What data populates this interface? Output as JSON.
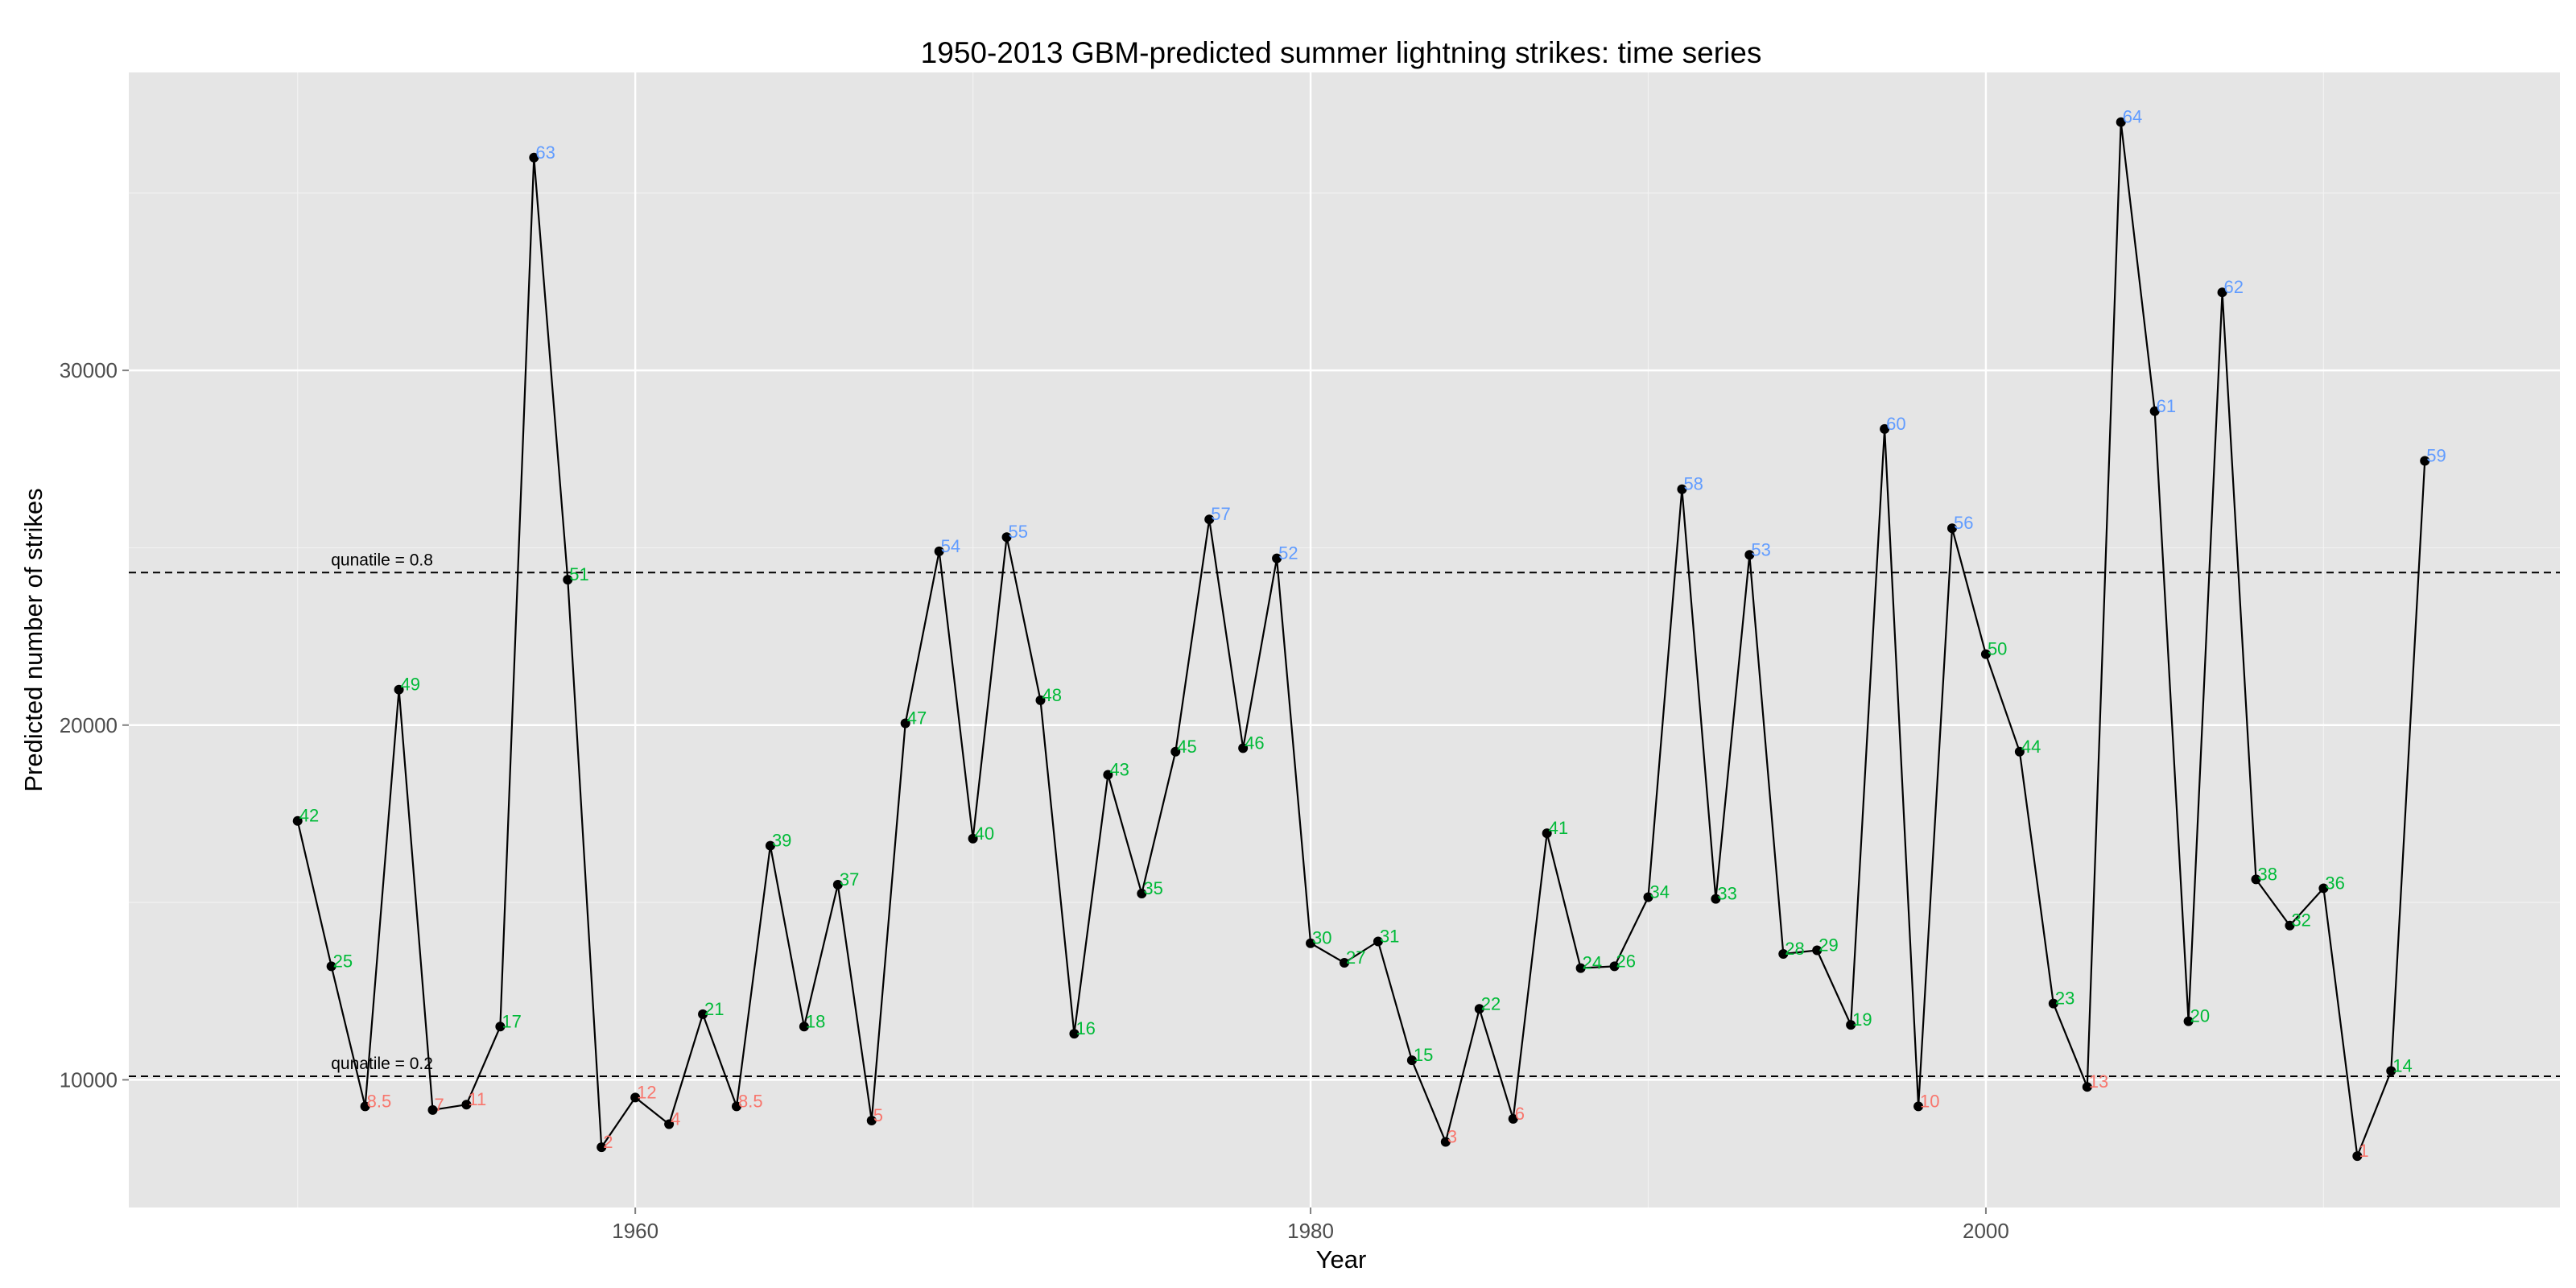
{
  "chart_data": {
    "type": "line",
    "title": "1950-2013 GBM-predicted summer lightning strikes: time series",
    "xlabel": "Year",
    "ylabel": "Predicted number of strikes",
    "xlim": [
      1945,
      2017
    ],
    "ylim": [
      6400,
      38400
    ],
    "x_ticks": [
      1960,
      1980,
      2000
    ],
    "y_ticks": [
      10000,
      20000,
      30000
    ],
    "grid": true,
    "background": "#e5e5e5",
    "colors": {
      "low": "#f8766d",
      "mid": "#00ba38",
      "high": "#619cff",
      "line": "#000000"
    },
    "reference_lines": [
      {
        "label": "qunatile = 0.8",
        "value": 24300
      },
      {
        "label": "qunatile = 0.2",
        "value": 10100
      }
    ],
    "points": [
      {
        "year": 1950,
        "value": 17300,
        "rank": "42",
        "group": "mid"
      },
      {
        "year": 1951,
        "value": 13200,
        "rank": "25",
        "group": "mid"
      },
      {
        "year": 1952,
        "value": 9250,
        "rank": "8.5",
        "group": "low"
      },
      {
        "year": 1953,
        "value": 21000,
        "rank": "49",
        "group": "mid"
      },
      {
        "year": 1954,
        "value": 9150,
        "rank": "7",
        "group": "low"
      },
      {
        "year": 1955,
        "value": 9300,
        "rank": "11",
        "group": "low"
      },
      {
        "year": 1956,
        "value": 11500,
        "rank": "17",
        "group": "mid"
      },
      {
        "year": 1957,
        "value": 36000,
        "rank": "63",
        "group": "high"
      },
      {
        "year": 1958,
        "value": 24100,
        "rank": "51",
        "group": "mid"
      },
      {
        "year": 1959,
        "value": 8100,
        "rank": "2",
        "group": "low"
      },
      {
        "year": 1960,
        "value": 9500,
        "rank": "12",
        "group": "low"
      },
      {
        "year": 1961,
        "value": 8750,
        "rank": "4",
        "group": "low"
      },
      {
        "year": 1962,
        "value": 11850,
        "rank": "21",
        "group": "mid"
      },
      {
        "year": 1963,
        "value": 9250,
        "rank": "8.5",
        "group": "low"
      },
      {
        "year": 1964,
        "value": 16600,
        "rank": "39",
        "group": "mid"
      },
      {
        "year": 1965,
        "value": 11500,
        "rank": "18",
        "group": "mid"
      },
      {
        "year": 1966,
        "value": 15500,
        "rank": "37",
        "group": "mid"
      },
      {
        "year": 1967,
        "value": 8850,
        "rank": "5",
        "group": "low"
      },
      {
        "year": 1968,
        "value": 20050,
        "rank": "47",
        "group": "mid"
      },
      {
        "year": 1969,
        "value": 24900,
        "rank": "54",
        "group": "high"
      },
      {
        "year": 1970,
        "value": 16800,
        "rank": "40",
        "group": "mid"
      },
      {
        "year": 1971,
        "value": 25300,
        "rank": "55",
        "group": "high"
      },
      {
        "year": 1972,
        "value": 20700,
        "rank": "48",
        "group": "mid"
      },
      {
        "year": 1973,
        "value": 11300,
        "rank": "16",
        "group": "mid"
      },
      {
        "year": 1974,
        "value": 18600,
        "rank": "43",
        "group": "mid"
      },
      {
        "year": 1975,
        "value": 15250,
        "rank": "35",
        "group": "mid"
      },
      {
        "year": 1976,
        "value": 19250,
        "rank": "45",
        "group": "mid"
      },
      {
        "year": 1977,
        "value": 25800,
        "rank": "57",
        "group": "high"
      },
      {
        "year": 1978,
        "value": 19350,
        "rank": "46",
        "group": "mid"
      },
      {
        "year": 1979,
        "value": 24700,
        "rank": "52",
        "group": "high"
      },
      {
        "year": 1980,
        "value": 13850,
        "rank": "30",
        "group": "mid"
      },
      {
        "year": 1981,
        "value": 13300,
        "rank": "27",
        "group": "mid"
      },
      {
        "year": 1982,
        "value": 13900,
        "rank": "31",
        "group": "mid"
      },
      {
        "year": 1983,
        "value": 10550,
        "rank": "15",
        "group": "mid"
      },
      {
        "year": 1984,
        "value": 8250,
        "rank": "3",
        "group": "low"
      },
      {
        "year": 1985,
        "value": 12000,
        "rank": "22",
        "group": "mid"
      },
      {
        "year": 1986,
        "value": 8900,
        "rank": "6",
        "group": "low"
      },
      {
        "year": 1987,
        "value": 16950,
        "rank": "41",
        "group": "mid"
      },
      {
        "year": 1988,
        "value": 13150,
        "rank": "24",
        "group": "mid"
      },
      {
        "year": 1989,
        "value": 13200,
        "rank": "26",
        "group": "mid"
      },
      {
        "year": 1990,
        "value": 15150,
        "rank": "34",
        "group": "mid"
      },
      {
        "year": 1991,
        "value": 26650,
        "rank": "58",
        "group": "high"
      },
      {
        "year": 1992,
        "value": 15100,
        "rank": "33",
        "group": "mid"
      },
      {
        "year": 1993,
        "value": 24800,
        "rank": "53",
        "group": "high"
      },
      {
        "year": 1994,
        "value": 13550,
        "rank": "28",
        "group": "mid"
      },
      {
        "year": 1995,
        "value": 13650,
        "rank": "29",
        "group": "mid"
      },
      {
        "year": 1996,
        "value": 11550,
        "rank": "19",
        "group": "mid"
      },
      {
        "year": 1997,
        "value": 28350,
        "rank": "60",
        "group": "high"
      },
      {
        "year": 1998,
        "value": 9250,
        "rank": "10",
        "group": "low"
      },
      {
        "year": 1999,
        "value": 25550,
        "rank": "56",
        "group": "high"
      },
      {
        "year": 2000,
        "value": 22000,
        "rank": "50",
        "group": "mid"
      },
      {
        "year": 2001,
        "value": 19250,
        "rank": "44",
        "group": "mid"
      },
      {
        "year": 2002,
        "value": 12150,
        "rank": "23",
        "group": "mid"
      },
      {
        "year": 2003,
        "value": 9800,
        "rank": "13",
        "group": "low"
      },
      {
        "year": 2004,
        "value": 37000,
        "rank": "64",
        "group": "high"
      },
      {
        "year": 2005,
        "value": 28850,
        "rank": "61",
        "group": "high"
      },
      {
        "year": 2006,
        "value": 11650,
        "rank": "20",
        "group": "mid"
      },
      {
        "year": 2007,
        "value": 32200,
        "rank": "62",
        "group": "high"
      },
      {
        "year": 2008,
        "value": 15650,
        "rank": "38",
        "group": "mid"
      },
      {
        "year": 2009,
        "value": 14350,
        "rank": "32",
        "group": "mid"
      },
      {
        "year": 2010,
        "value": 15400,
        "rank": "36",
        "group": "mid"
      },
      {
        "year": 2011,
        "value": 7850,
        "rank": "1",
        "group": "low"
      },
      {
        "year": 2012,
        "value": 10250,
        "rank": "14",
        "group": "mid"
      },
      {
        "year": 2013,
        "value": 27450,
        "rank": "59",
        "group": "high"
      }
    ]
  }
}
